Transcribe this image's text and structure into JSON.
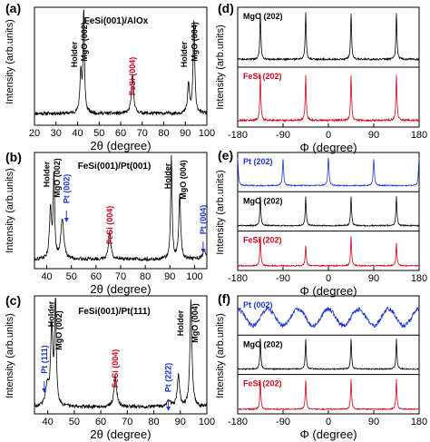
{
  "figure": {
    "panel_letters": [
      "(a)",
      "(b)",
      "(c)",
      "(d)",
      "(e)",
      "(f)"
    ]
  },
  "chart_data": [
    {
      "id": "a",
      "type": "line",
      "panel_label": "(a)",
      "title": "FeSi(001)/AlOx",
      "xlabel": "2θ (degree)",
      "ylabel": "Intensity (arb.units)",
      "xlim": [
        20,
        100
      ],
      "xticks": [
        20,
        30,
        40,
        50,
        60,
        70,
        80,
        90,
        100
      ],
      "grid": false,
      "series": [
        {
          "color": "#000000",
          "baseline": 0.1,
          "peaks": [
            {
              "x": 41.5,
              "h": 0.35,
              "w": 0.5
            },
            {
              "x": 42.9,
              "h": 0.92,
              "w": 0.35
            },
            {
              "x": 65.5,
              "h": 0.33,
              "w": 0.6
            },
            {
              "x": 91.5,
              "h": 0.25,
              "w": 0.5
            },
            {
              "x": 94.0,
              "h": 0.78,
              "w": 0.45
            }
          ]
        }
      ],
      "annotations": [
        {
          "text": "Holder",
          "x": 38.5,
          "color": "#000000"
        },
        {
          "text": "MgO (002)",
          "x": 43.2,
          "color": "#000000"
        },
        {
          "text": "FeSi (004)",
          "x": 65.5,
          "color": "#d0021b"
        },
        {
          "text": "Holder",
          "x": 89.5,
          "color": "#000000"
        },
        {
          "text": "MgO (004)",
          "x": 94.3,
          "color": "#000000"
        }
      ]
    },
    {
      "id": "b",
      "type": "line",
      "panel_label": "(b)",
      "title": "FeSi(001)/Pt(001)",
      "xlabel": "2θ (degree)",
      "ylabel": "Intensity (arb.units)",
      "xlim": [
        35,
        105
      ],
      "xticks": [
        40,
        50,
        60,
        70,
        80,
        90,
        100
      ],
      "grid": false,
      "series": [
        {
          "color": "#000000",
          "baseline": 0.08,
          "peaks": [
            {
              "x": 41.5,
              "h": 0.42,
              "w": 0.5
            },
            {
              "x": 42.9,
              "h": 0.72,
              "w": 0.35
            },
            {
              "x": 46.3,
              "h": 0.34,
              "w": 0.7
            },
            {
              "x": 65.5,
              "h": 0.23,
              "w": 0.6
            },
            {
              "x": 90.6,
              "h": 0.88,
              "w": 0.35
            },
            {
              "x": 94.0,
              "h": 0.55,
              "w": 0.45
            },
            {
              "x": 104.0,
              "h": 0.07,
              "w": 0.9
            }
          ]
        }
      ],
      "annotations": [
        {
          "text": "Holder",
          "x": 40.0,
          "color": "#000000"
        },
        {
          "text": "MgO (002)",
          "x": 44.2,
          "color": "#000000"
        },
        {
          "text": "Pt (002)",
          "x": 48.0,
          "color": "#1a36d8"
        },
        {
          "text": "FeSi (004)",
          "x": 65.5,
          "color": "#d0021b"
        },
        {
          "text": "Holder",
          "x": 89.2,
          "color": "#000000"
        },
        {
          "text": "MgO (004)",
          "x": 95.5,
          "color": "#000000"
        },
        {
          "text": "Pt (004)",
          "x": 103.5,
          "color": "#1a36d8"
        }
      ]
    },
    {
      "id": "c",
      "type": "line",
      "panel_label": "(c)",
      "title": "FeSi(001)/Pt(111)",
      "xlabel": "2θ (degree)",
      "ylabel": "Intensity (arb.units)",
      "xlim": [
        35,
        100
      ],
      "xticks": [
        40,
        50,
        60,
        70,
        80,
        90,
        100
      ],
      "grid": false,
      "series": [
        {
          "color": "#000000",
          "baseline": 0.06,
          "peaks": [
            {
              "x": 39.8,
              "h": 0.17,
              "w": 0.7
            },
            {
              "x": 41.5,
              "h": 0.65,
              "w": 0.5
            },
            {
              "x": 42.9,
              "h": 0.92,
              "w": 0.35
            },
            {
              "x": 65.5,
              "h": 0.25,
              "w": 0.6
            },
            {
              "x": 85.7,
              "h": 0.05,
              "w": 0.8
            },
            {
              "x": 89.3,
              "h": 0.27,
              "w": 0.5
            },
            {
              "x": 94.0,
              "h": 0.9,
              "w": 0.45
            }
          ]
        }
      ],
      "annotations": [
        {
          "text": "Pt (111)",
          "x": 38.7,
          "color": "#1a36d8"
        },
        {
          "text": "Holder",
          "x": 41.3,
          "color": "#000000"
        },
        {
          "text": "MgO (002)",
          "x": 44.2,
          "color": "#000000"
        },
        {
          "text": "FeSi (004)",
          "x": 65.5,
          "color": "#d0021b"
        },
        {
          "text": "Pt (222)",
          "x": 85.5,
          "color": "#1a36d8"
        },
        {
          "text": "Holder",
          "x": 90.0,
          "color": "#000000"
        },
        {
          "text": "MgO (004)",
          "x": 95.5,
          "color": "#000000"
        }
      ]
    },
    {
      "id": "d",
      "type": "line",
      "panel_label": "(d)",
      "xlabel": "Φ (degree)",
      "ylabel": "Intensity (arb.units)",
      "xlim": [
        -180,
        180
      ],
      "xticks": [
        -180,
        -90,
        0,
        90,
        180
      ],
      "grid": false,
      "subplots": [
        {
          "label": "MgO (202)",
          "color": "#000000",
          "baseline": 0.12,
          "peaks": [
            {
              "x": -135,
              "h": 0.8,
              "w": 1.2
            },
            {
              "x": -45,
              "h": 0.8,
              "w": 1.2
            },
            {
              "x": 45,
              "h": 0.8,
              "w": 1.2
            },
            {
              "x": 135,
              "h": 0.8,
              "w": 1.2
            }
          ]
        },
        {
          "label": "FeSi (202)",
          "color": "#d0021b",
          "baseline": 0.1,
          "peaks": [
            {
              "x": -135,
              "h": 0.78,
              "w": 1.2
            },
            {
              "x": -45,
              "h": 0.78,
              "w": 1.2
            },
            {
              "x": 45,
              "h": 0.78,
              "w": 1.2
            },
            {
              "x": 135,
              "h": 0.78,
              "w": 1.2
            }
          ]
        }
      ]
    },
    {
      "id": "e",
      "type": "line",
      "panel_label": "(e)",
      "xlabel": "Φ (degree)",
      "ylabel": "Intensity (arb.units)",
      "xlim": [
        -180,
        180
      ],
      "xticks": [
        -180,
        -90,
        0,
        90,
        180
      ],
      "grid": false,
      "subplots": [
        {
          "label": "Pt (202)",
          "color": "#1a36d8",
          "baseline": 0.14,
          "peaks": [
            {
              "x": -180,
              "h": 0.75,
              "w": 1.4
            },
            {
              "x": -90,
              "h": 0.7,
              "w": 1.4
            },
            {
              "x": 0,
              "h": 0.75,
              "w": 1.4
            },
            {
              "x": 90,
              "h": 0.7,
              "w": 1.4
            },
            {
              "x": 180,
              "h": 0.75,
              "w": 1.4
            }
          ]
        },
        {
          "label": "MgO (202)",
          "color": "#000000",
          "baseline": 0.12,
          "peaks": [
            {
              "x": -135,
              "h": 0.78,
              "w": 1.2
            },
            {
              "x": -45,
              "h": 0.78,
              "w": 1.2
            },
            {
              "x": 45,
              "h": 0.78,
              "w": 1.2
            },
            {
              "x": 135,
              "h": 0.78,
              "w": 1.2
            }
          ]
        },
        {
          "label": "FeSi (202)",
          "color": "#d0021b",
          "baseline": 0.1,
          "peaks": [
            {
              "x": -135,
              "h": 0.78,
              "w": 1.2
            },
            {
              "x": -45,
              "h": 0.55,
              "w": 1.2
            },
            {
              "x": 45,
              "h": 0.78,
              "w": 1.2
            },
            {
              "x": 135,
              "h": 0.6,
              "w": 1.2
            }
          ]
        }
      ]
    },
    {
      "id": "f",
      "type": "line",
      "panel_label": "(f)",
      "xlabel": "Φ (degree)",
      "ylabel": "Intensity (arb.units)",
      "xlim": [
        -180,
        180
      ],
      "xticks": [
        -180,
        -90,
        0,
        90,
        180
      ],
      "grid": false,
      "subplots": [
        {
          "label": "Pt (002)",
          "color": "#1a36d8",
          "baseline": 0.45,
          "wave": {
            "amp": 0.22,
            "period": 60
          },
          "noise": 0.12,
          "peaks": []
        },
        {
          "label": "MgO (202)",
          "color": "#000000",
          "baseline": 0.12,
          "peaks": [
            {
              "x": -135,
              "h": 0.8,
              "w": 1.2
            },
            {
              "x": -45,
              "h": 0.8,
              "w": 1.2
            },
            {
              "x": 45,
              "h": 0.8,
              "w": 1.2
            },
            {
              "x": 135,
              "h": 0.8,
              "w": 1.2
            }
          ]
        },
        {
          "label": "FeSi (202)",
          "color": "#d0021b",
          "baseline": 0.1,
          "peaks": [
            {
              "x": -135,
              "h": 0.78,
              "w": 1.2
            },
            {
              "x": -45,
              "h": 0.78,
              "w": 1.2
            },
            {
              "x": 45,
              "h": 0.78,
              "w": 1.2
            },
            {
              "x": 135,
              "h": 0.78,
              "w": 1.2
            }
          ]
        }
      ]
    }
  ]
}
